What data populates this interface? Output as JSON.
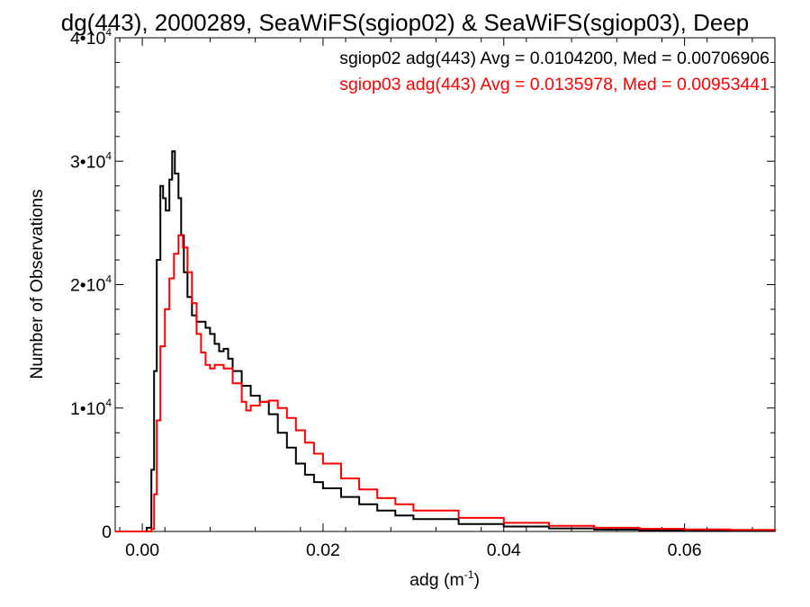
{
  "chart_data": {
    "type": "line",
    "title": "dg(443), 2000289, SeaWiFS(sgiop02) & SeaWiFS(sgiop03), Deep",
    "xlabel": "adg (m",
    "xlabel_sup": "-1",
    "xlabel_close": ")",
    "ylabel": "Number of Observations",
    "xlim": [
      -0.003,
      0.07
    ],
    "ylim": [
      0,
      40000
    ],
    "x_ticks": [
      {
        "value": 0.0,
        "label": "0.00"
      },
      {
        "value": 0.02,
        "label": "0.02"
      },
      {
        "value": 0.04,
        "label": "0.04"
      },
      {
        "value": 0.06,
        "label": "0.06"
      }
    ],
    "y_ticks": [
      {
        "value": 0,
        "base": "0",
        "exp": ""
      },
      {
        "value": 10000,
        "base": "1•10",
        "exp": "4"
      },
      {
        "value": 20000,
        "base": "2•10",
        "exp": "4"
      },
      {
        "value": 30000,
        "base": "3•10",
        "exp": "4"
      },
      {
        "value": 40000,
        "base": "4•10",
        "exp": "4"
      }
    ],
    "annotations": [
      {
        "text": "sgiop02 adg(443) Avg = 0.0104200, Med = 0.00706906",
        "color": "#000000"
      },
      {
        "text": "sgiop03 adg(443) Avg = 0.0135978, Med = 0.00953441",
        "color": "#ff0000"
      }
    ],
    "series": [
      {
        "name": "sgiop02",
        "color": "#000000",
        "points": [
          [
            -0.003,
            0
          ],
          [
            0.0,
            0
          ],
          [
            0.0005,
            300
          ],
          [
            0.001,
            5000
          ],
          [
            0.0013,
            13000
          ],
          [
            0.0016,
            22000
          ],
          [
            0.002,
            28000
          ],
          [
            0.0023,
            27000
          ],
          [
            0.0026,
            26000
          ],
          [
            0.003,
            28500
          ],
          [
            0.0033,
            30800
          ],
          [
            0.0036,
            29000
          ],
          [
            0.004,
            27000
          ],
          [
            0.0043,
            24000
          ],
          [
            0.0046,
            21000
          ],
          [
            0.005,
            19000
          ],
          [
            0.0055,
            17500
          ],
          [
            0.006,
            17000
          ],
          [
            0.0065,
            17000
          ],
          [
            0.007,
            16500
          ],
          [
            0.0075,
            16000
          ],
          [
            0.008,
            15200
          ],
          [
            0.0085,
            14600
          ],
          [
            0.009,
            14800
          ],
          [
            0.0095,
            14000
          ],
          [
            0.01,
            13000
          ],
          [
            0.011,
            11800
          ],
          [
            0.012,
            11000
          ],
          [
            0.013,
            10500
          ],
          [
            0.014,
            9500
          ],
          [
            0.015,
            8000
          ],
          [
            0.016,
            6800
          ],
          [
            0.017,
            5500
          ],
          [
            0.018,
            4600
          ],
          [
            0.019,
            4000
          ],
          [
            0.02,
            3500
          ],
          [
            0.022,
            2800
          ],
          [
            0.024,
            2200
          ],
          [
            0.026,
            1700
          ],
          [
            0.028,
            1300
          ],
          [
            0.03,
            1000
          ],
          [
            0.035,
            600
          ],
          [
            0.04,
            400
          ],
          [
            0.045,
            250
          ],
          [
            0.05,
            150
          ],
          [
            0.055,
            100
          ],
          [
            0.06,
            80
          ],
          [
            0.065,
            50
          ],
          [
            0.07,
            40
          ]
        ]
      },
      {
        "name": "sgiop03",
        "color": "#ff0000",
        "points": [
          [
            -0.003,
            0
          ],
          [
            0.0,
            0
          ],
          [
            0.001,
            200
          ],
          [
            0.0013,
            3000
          ],
          [
            0.0016,
            9000
          ],
          [
            0.002,
            15000
          ],
          [
            0.0025,
            18000
          ],
          [
            0.003,
            20500
          ],
          [
            0.0035,
            22500
          ],
          [
            0.004,
            24000
          ],
          [
            0.0045,
            23000
          ],
          [
            0.005,
            21000
          ],
          [
            0.0055,
            18500
          ],
          [
            0.006,
            16000
          ],
          [
            0.0065,
            14500
          ],
          [
            0.007,
            13500
          ],
          [
            0.0075,
            13200
          ],
          [
            0.008,
            13500
          ],
          [
            0.009,
            13200
          ],
          [
            0.01,
            12000
          ],
          [
            0.011,
            10500
          ],
          [
            0.0115,
            9800
          ],
          [
            0.012,
            10200
          ],
          [
            0.013,
            10500
          ],
          [
            0.014,
            10600
          ],
          [
            0.015,
            10000
          ],
          [
            0.016,
            9200
          ],
          [
            0.017,
            8200
          ],
          [
            0.018,
            7200
          ],
          [
            0.019,
            6300
          ],
          [
            0.02,
            5500
          ],
          [
            0.022,
            4300
          ],
          [
            0.024,
            3400
          ],
          [
            0.026,
            2700
          ],
          [
            0.028,
            2200
          ],
          [
            0.03,
            1700
          ],
          [
            0.035,
            1100
          ],
          [
            0.04,
            700
          ],
          [
            0.045,
            450
          ],
          [
            0.05,
            300
          ],
          [
            0.055,
            220
          ],
          [
            0.06,
            170
          ],
          [
            0.065,
            130
          ],
          [
            0.07,
            100
          ]
        ]
      }
    ]
  }
}
